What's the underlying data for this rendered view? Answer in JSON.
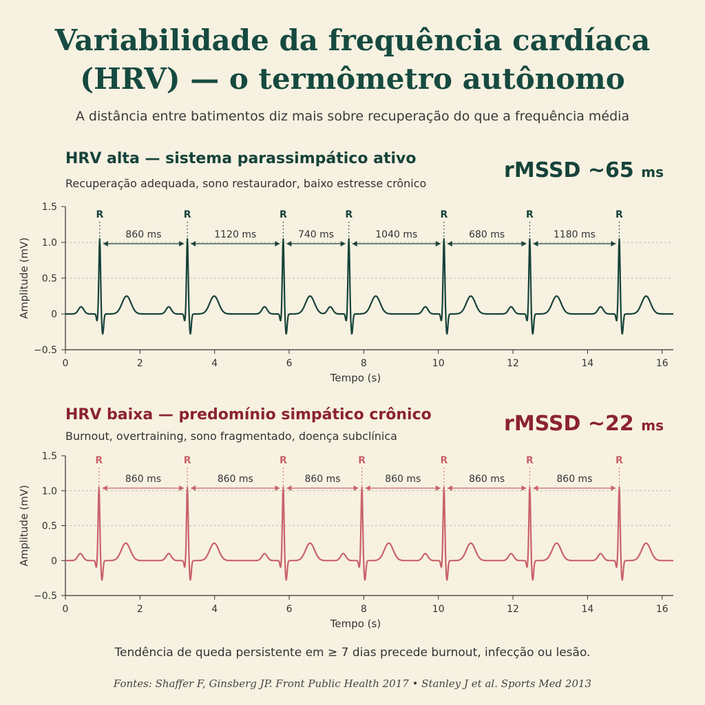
{
  "title_line1": "Variabilidade da frequência cardíaca",
  "title_line2": "(HRV) — o termômetro autônomo",
  "subtitle": "A distância entre batimentos diz mais sobre recuperação do que a frequência média",
  "footer_note": "Tendência de queda persistente em ≥ 7 dias precede burnout, infecção ou lesão.",
  "sources": "Fontes: Shaffer F, Ginsberg JP. Front Public Health 2017 • Stanley J et al. Sports Med 2013",
  "colors": {
    "green": "#16433a",
    "red": "#8b2330",
    "red_trace": "#c9626a"
  },
  "chart_data": [
    {
      "type": "line",
      "heading": "HRV alta — sistema parassimpático ativo",
      "description": "Recuperação adequada, sono restaurador, baixo estresse crônico",
      "metric_value": "rMSSD ~65",
      "metric_unit": "ms",
      "xlabel": "Tempo (s)",
      "ylabel": "Amplitude (mV)",
      "xlim": [
        0,
        16.3
      ],
      "ylim": [
        -0.5,
        1.5
      ],
      "xticks": [
        0,
        2,
        4,
        6,
        8,
        10,
        12,
        14,
        16
      ],
      "yticks": [
        -0.5,
        0,
        0.5,
        1.0,
        1.5
      ],
      "ytick_labels": [
        "−0.5",
        "0",
        "0.5",
        "1.0",
        "1.5"
      ],
      "grid_y": [
        0.5,
        1.0
      ],
      "r_peak_label": "R",
      "r_peaks_s": [
        0.92,
        3.27,
        5.84,
        7.6,
        10.15,
        12.45,
        14.85
      ],
      "rr_intervals": [
        "860 ms",
        "1120 ms",
        "740 ms",
        "1040 ms",
        "680 ms",
        "1180 ms"
      ],
      "color": "#16433a"
    },
    {
      "type": "line",
      "heading": "HRV baixa — predomínio simpático crônico",
      "description": "Burnout, overtraining, sono fragmentado, doença subclínica",
      "metric_value": "rMSSD ~22",
      "metric_unit": "ms",
      "xlabel": "Tempo (s)",
      "ylabel": "Amplitude (mV)",
      "xlim": [
        0,
        16.3
      ],
      "ylim": [
        -0.5,
        1.5
      ],
      "xticks": [
        0,
        2,
        4,
        6,
        8,
        10,
        12,
        14,
        16
      ],
      "yticks": [
        -0.5,
        0,
        0.5,
        1.0,
        1.5
      ],
      "ytick_labels": [
        "−0.5",
        "0",
        "0.5",
        "1.0",
        "1.5"
      ],
      "grid_y": [
        0.5,
        1.0
      ],
      "r_peak_label": "R",
      "r_peaks_s": [
        0.9,
        3.27,
        5.84,
        7.95,
        10.15,
        12.45,
        14.85
      ],
      "rr_intervals": [
        "860 ms",
        "860 ms",
        "860 ms",
        "860 ms",
        "860 ms",
        "860 ms"
      ],
      "color": "#c9626a"
    }
  ]
}
